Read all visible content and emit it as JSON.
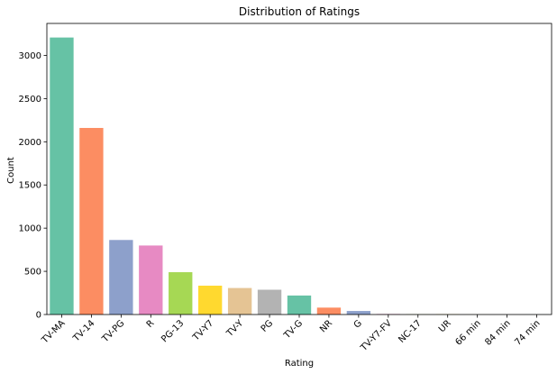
{
  "chart_data": {
    "type": "bar",
    "title": "Distribution of Ratings",
    "xlabel": "Rating",
    "ylabel": "Count",
    "categories": [
      "TV-MA",
      "TV-14",
      "TV-PG",
      "R",
      "PG-13",
      "TV-Y7",
      "TV-Y",
      "PG",
      "TV-G",
      "NR",
      "G",
      "TV-Y7-FV",
      "NC-17",
      "UR",
      "66 min",
      "84 min",
      "74 min"
    ],
    "values": [
      3207,
      2160,
      863,
      799,
      490,
      334,
      307,
      287,
      220,
      80,
      41,
      6,
      3,
      3,
      1,
      1,
      1
    ],
    "colors": [
      "#66c2a5",
      "#fc8d62",
      "#8da0cb",
      "#e78ac3",
      "#a6d854",
      "#ffd92f",
      "#e5c494",
      "#b3b3b3",
      "#66c2a5",
      "#fc8d62",
      "#8da0cb",
      "#e78ac3",
      "#a6d854",
      "#ffd92f",
      "#e5c494",
      "#b3b3b3",
      "#66c2a5"
    ],
    "ylim": [
      0,
      3370
    ],
    "yticks": [
      0,
      500,
      1000,
      1500,
      2000,
      2500,
      3000
    ],
    "ytick_labels": [
      "0",
      "500",
      "1000",
      "1500",
      "2000",
      "2500",
      "3000"
    ],
    "grid": false
  }
}
